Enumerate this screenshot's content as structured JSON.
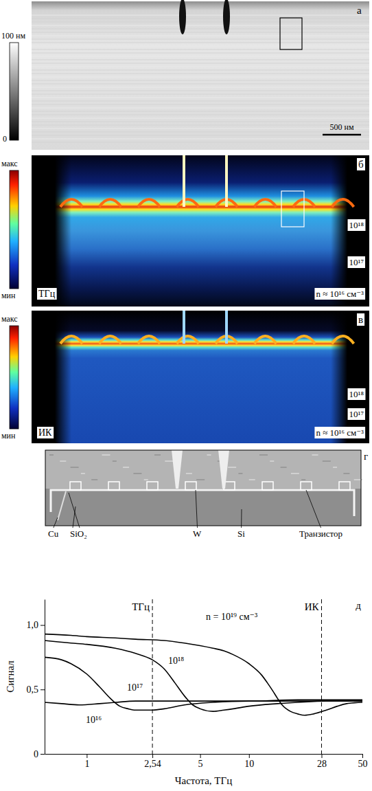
{
  "image_panels": [
    {
      "letter": "а",
      "colorbar": {
        "top": "100 нм",
        "bottom": "0"
      },
      "scale_bar": "500 нм"
    },
    {
      "letter": "б",
      "colorbar": {
        "top": "макс",
        "bottom": "мин"
      },
      "method": "ТГц",
      "labels": [
        "10¹⁸",
        "10¹⁷",
        "n ≈ 10¹⁶ см⁻³"
      ]
    },
    {
      "letter": "в",
      "colorbar": {
        "top": "макс",
        "bottom": "мин"
      },
      "method": "ИК",
      "labels": [
        "10¹⁸",
        "10¹⁷",
        "n ≈ 10¹⁶ см⁻³"
      ]
    },
    {
      "letter": "г",
      "labels": [
        "Cu",
        "SiO₂",
        "W",
        "Si",
        "Транзистор"
      ]
    }
  ],
  "chart_data": {
    "type": "line",
    "letter": "д",
    "x_label": "Частота, ТГц",
    "y_label": "Сигнал",
    "log": "x",
    "xlim": [
      0.55,
      50
    ],
    "xticks": [
      1,
      {
        "value": 2.54,
        "label": "2,54"
      },
      5,
      10,
      28,
      50
    ],
    "ylim": [
      0,
      1.2
    ],
    "yticks": [
      0,
      {
        "value": 0.5,
        "label": "0,5"
      },
      {
        "value": 1,
        "label": "1,0"
      }
    ],
    "annotations": [
      {
        "x": 2.54,
        "text": "ТГц"
      },
      {
        "x": 28,
        "text": "ИК"
      }
    ],
    "series": [
      {
        "name": "n = 10¹⁹ см⁻³",
        "color": "#000000",
        "line_style": "solid",
        "x": [
          0.55,
          0.8,
          1,
          1.5,
          2,
          3,
          4,
          5,
          6,
          7,
          8,
          10,
          12,
          13,
          14,
          15,
          16,
          18,
          20,
          22,
          25,
          30,
          35,
          40,
          50
        ],
        "values": [
          0.93,
          0.92,
          0.91,
          0.9,
          0.89,
          0.88,
          0.86,
          0.84,
          0.82,
          0.8,
          0.77,
          0.7,
          0.61,
          0.55,
          0.49,
          0.43,
          0.38,
          0.33,
          0.31,
          0.3,
          0.31,
          0.34,
          0.37,
          0.39,
          0.4
        ]
      },
      {
        "name": "10¹⁸",
        "color": "#000000",
        "line_style": "solid",
        "x": [
          0.55,
          0.8,
          1,
          1.5,
          2,
          2.54,
          3,
          3.5,
          4,
          4.5,
          5,
          6,
          7,
          8,
          10,
          15,
          20,
          30,
          50
        ],
        "values": [
          0.88,
          0.86,
          0.85,
          0.82,
          0.78,
          0.73,
          0.66,
          0.55,
          0.45,
          0.38,
          0.35,
          0.33,
          0.34,
          0.35,
          0.37,
          0.39,
          0.4,
          0.41,
          0.41
        ]
      },
      {
        "name": "10¹⁷",
        "color": "#000000",
        "line_style": "solid",
        "x": [
          0.55,
          0.7,
          0.8,
          1,
          1.2,
          1.4,
          1.6,
          1.8,
          2,
          2.54,
          3,
          4,
          6,
          10,
          20,
          50
        ],
        "values": [
          0.75,
          0.73,
          0.7,
          0.62,
          0.52,
          0.43,
          0.37,
          0.35,
          0.34,
          0.34,
          0.35,
          0.38,
          0.4,
          0.41,
          0.41,
          0.41
        ]
      },
      {
        "name": "10¹⁶",
        "color": "#000000",
        "line_style": "solid",
        "x": [
          0.55,
          0.7,
          0.9,
          1.2,
          1.5,
          2,
          3,
          5,
          10,
          20,
          50
        ],
        "values": [
          0.4,
          0.39,
          0.38,
          0.39,
          0.4,
          0.41,
          0.41,
          0.41,
          0.41,
          0.42,
          0.42
        ]
      }
    ]
  }
}
